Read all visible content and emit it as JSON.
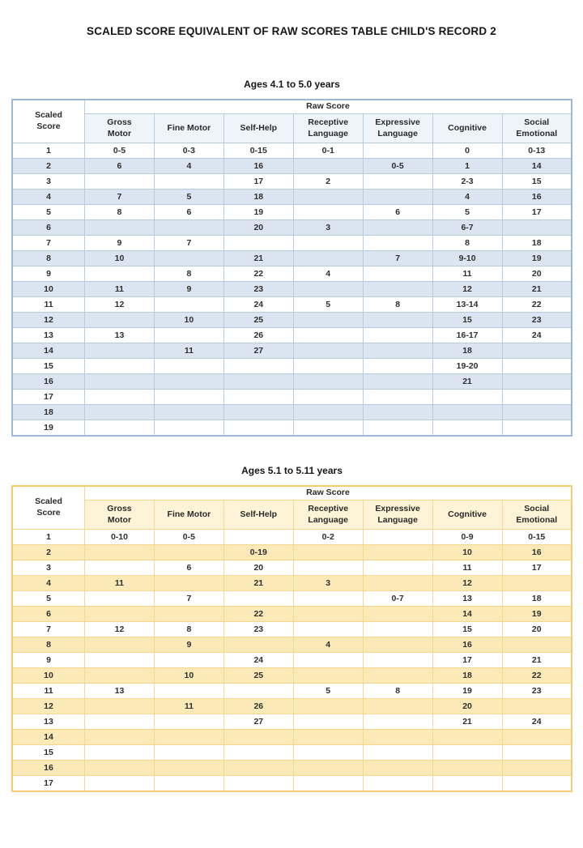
{
  "page": {
    "title": "SCALED SCORE EQUIVALENT OF RAW SCORES TABLE CHILD'S RECORD 2"
  },
  "header_labels": {
    "scaled": "Scaled\nScore",
    "raw": "Raw Score"
  },
  "columns": [
    "Gross\nMotor",
    "Fine Motor",
    "Self-Help",
    "Receptive\nLanguage",
    "Expressive\nLanguage",
    "Cognitive",
    "Social\nEmotional"
  ],
  "tables": [
    {
      "subtitle": "Ages 4.1 to 5.0 years",
      "theme": "blue",
      "colors": {
        "stripe": "#dbe5f1",
        "grid": "#b5cbe2",
        "outer_border": "#9db9d8",
        "subheader_fill": "#eff4fa"
      },
      "rows": [
        [
          "1",
          "0-5",
          "0-3",
          "0-15",
          "0-1",
          "",
          "0",
          "0-13"
        ],
        [
          "2",
          "6",
          "4",
          "16",
          "",
          "0-5",
          "1",
          "14"
        ],
        [
          "3",
          "",
          "",
          "17",
          "2",
          "",
          "2-3",
          "15"
        ],
        [
          "4",
          "7",
          "5",
          "18",
          "",
          "",
          "4",
          "16"
        ],
        [
          "5",
          "8",
          "6",
          "19",
          "",
          "6",
          "5",
          "17"
        ],
        [
          "6",
          "",
          "",
          "20",
          "3",
          "",
          "6-7",
          ""
        ],
        [
          "7",
          "9",
          "7",
          "",
          "",
          "",
          "8",
          "18"
        ],
        [
          "8",
          "10",
          "",
          "21",
          "",
          "7",
          "9-10",
          "19"
        ],
        [
          "9",
          "",
          "8",
          "22",
          "4",
          "",
          "11",
          "20"
        ],
        [
          "10",
          "11",
          "9",
          "23",
          "",
          "",
          "12",
          "21"
        ],
        [
          "11",
          "12",
          "",
          "24",
          "5",
          "8",
          "13-14",
          "22"
        ],
        [
          "12",
          "",
          "10",
          "25",
          "",
          "",
          "15",
          "23"
        ],
        [
          "13",
          "13",
          "",
          "26",
          "",
          "",
          "16-17",
          "24"
        ],
        [
          "14",
          "",
          "11",
          "27",
          "",
          "",
          "18",
          ""
        ],
        [
          "15",
          "",
          "",
          "",
          "",
          "",
          "19-20",
          ""
        ],
        [
          "16",
          "",
          "",
          "",
          "",
          "",
          "21",
          ""
        ],
        [
          "17",
          "",
          "",
          "",
          "",
          "",
          "",
          ""
        ],
        [
          "18",
          "",
          "",
          "",
          "",
          "",
          "",
          ""
        ],
        [
          "19",
          "",
          "",
          "",
          "",
          "",
          "",
          ""
        ]
      ]
    },
    {
      "subtitle": "Ages 5.1 to 5.11 years",
      "theme": "gold",
      "colors": {
        "stripe": "#fce9b8",
        "grid": "#f5d88e",
        "outer_border": "#f2cd74",
        "subheader_fill": "#fdf3d6"
      },
      "rows": [
        [
          "1",
          "0-10",
          "0-5",
          "",
          "0-2",
          "",
          "0-9",
          "0-15"
        ],
        [
          "2",
          "",
          "",
          "0-19",
          "",
          "",
          "10",
          "16"
        ],
        [
          "3",
          "",
          "6",
          "20",
          "",
          "",
          "11",
          "17"
        ],
        [
          "4",
          "11",
          "",
          "21",
          "3",
          "",
          "12",
          ""
        ],
        [
          "5",
          "",
          "7",
          "",
          "",
          "0-7",
          "13",
          "18"
        ],
        [
          "6",
          "",
          "",
          "22",
          "",
          "",
          "14",
          "19"
        ],
        [
          "7",
          "12",
          "8",
          "23",
          "",
          "",
          "15",
          "20"
        ],
        [
          "8",
          "",
          "9",
          "",
          "4",
          "",
          "16",
          ""
        ],
        [
          "9",
          "",
          "",
          "24",
          "",
          "",
          "17",
          "21"
        ],
        [
          "10",
          "",
          "10",
          "25",
          "",
          "",
          "18",
          "22"
        ],
        [
          "11",
          "13",
          "",
          "",
          "5",
          "8",
          "19",
          "23"
        ],
        [
          "12",
          "",
          "11",
          "26",
          "",
          "",
          "20",
          ""
        ],
        [
          "13",
          "",
          "",
          "27",
          "",
          "",
          "21",
          "24"
        ],
        [
          "14",
          "",
          "",
          "",
          "",
          "",
          "",
          ""
        ],
        [
          "15",
          "",
          "",
          "",
          "",
          "",
          "",
          ""
        ],
        [
          "16",
          "",
          "",
          "",
          "",
          "",
          "",
          ""
        ],
        [
          "17",
          "",
          "",
          "",
          "",
          "",
          "",
          ""
        ]
      ]
    }
  ]
}
